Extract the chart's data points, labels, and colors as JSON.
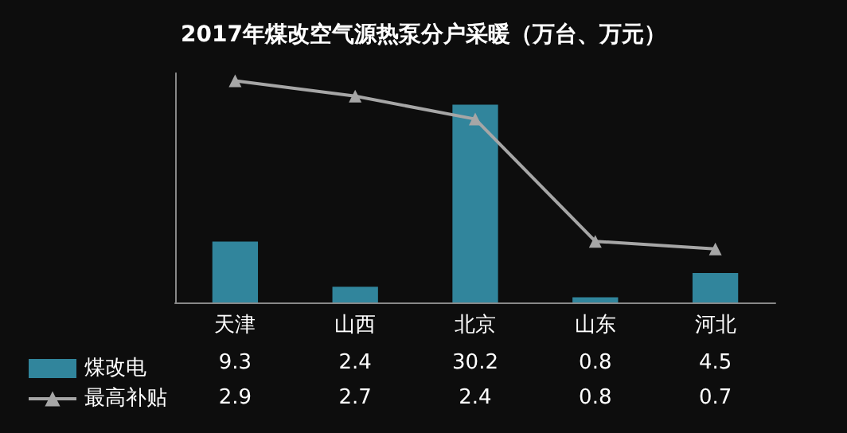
{
  "chart_data": {
    "type": "bar",
    "title": "2017年煤改空气源热泵分户采暖（万台、万元）",
    "categories": [
      "天津",
      "山西",
      "北京",
      "山东",
      "河北"
    ],
    "series": [
      {
        "name": "煤改电",
        "color": "#31859c",
        "values": [
          9.3,
          2.4,
          30.2,
          0.8,
          4.5
        ]
      },
      {
        "name": "最高补贴",
        "type": "line",
        "axis": "y2",
        "color": "#a6a6a6",
        "values": [
          2.9,
          2.7,
          2.4,
          0.8,
          0.7
        ]
      }
    ],
    "ylim": [
      0,
      35
    ],
    "tick_labels": "x",
    "grid": false,
    "legend": "bottom left",
    "marker": "triangle",
    "line_style": "solid",
    "data_labels": true
  }
}
